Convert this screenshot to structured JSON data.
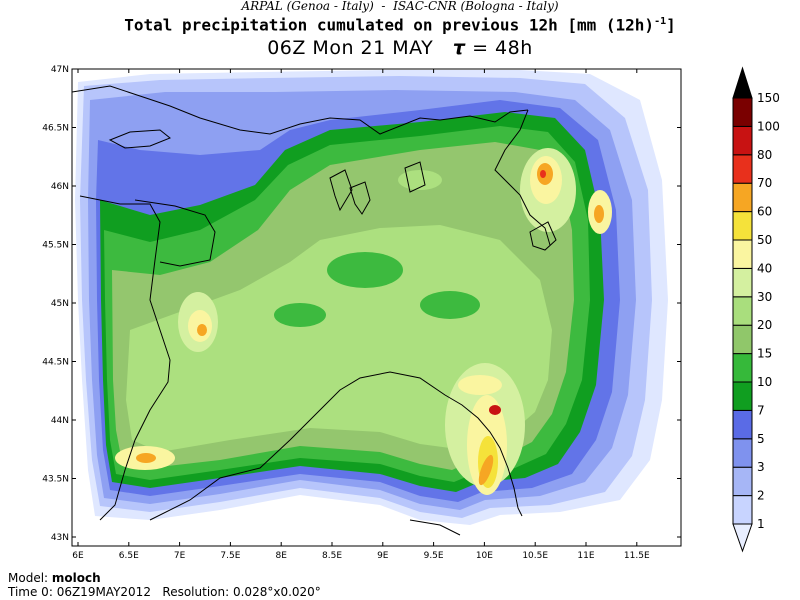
{
  "header": {
    "subtitle": "ARPAL (Genoa - Italy)  -  ISAC-CNR (Bologna - Italy)",
    "title": "Total precipitation cumulated on previous 12h [mm (12h)",
    "title_sup": "-1",
    "title_end": "]",
    "time_label": "06Z Mon 21 MAY",
    "tau_symbol": "τ",
    "tau_value": "= 48h"
  },
  "map": {
    "lon_labels": [
      "6E",
      "6.5E",
      "7E",
      "7.5E",
      "8E",
      "8.5E",
      "9E",
      "9.5E",
      "10E",
      "10.5E",
      "11E",
      "11.5E"
    ],
    "lat_labels": [
      "47N",
      "46.5N",
      "46N",
      "45.5N",
      "45N",
      "44.5N",
      "44N",
      "43.5N",
      "43N"
    ]
  },
  "colorbar": {
    "levels": [
      "1",
      "2",
      "3",
      "5",
      "7",
      "10",
      "15",
      "20",
      "30",
      "40",
      "50",
      "60",
      "70",
      "80",
      "100",
      "150"
    ],
    "colors": [
      "#e8eeff",
      "#c8d4ff",
      "#a6b6f6",
      "#7f92ee",
      "#5a6be6",
      "#109e20",
      "#36b93a",
      "#90c76a",
      "#a9de7d",
      "#d4f0a0",
      "#faf5a0",
      "#f5e23a",
      "#f6a623",
      "#e8301c",
      "#c81212",
      "#7a0000",
      "#000000"
    ]
  },
  "footer": {
    "model_label": "Model:",
    "model_value": "moloch",
    "time0_label": "Time 0:",
    "time0_value": "06Z19MAY2012",
    "resolution_label": "Resolution:",
    "resolution_value": "0.028°x0.020°"
  }
}
